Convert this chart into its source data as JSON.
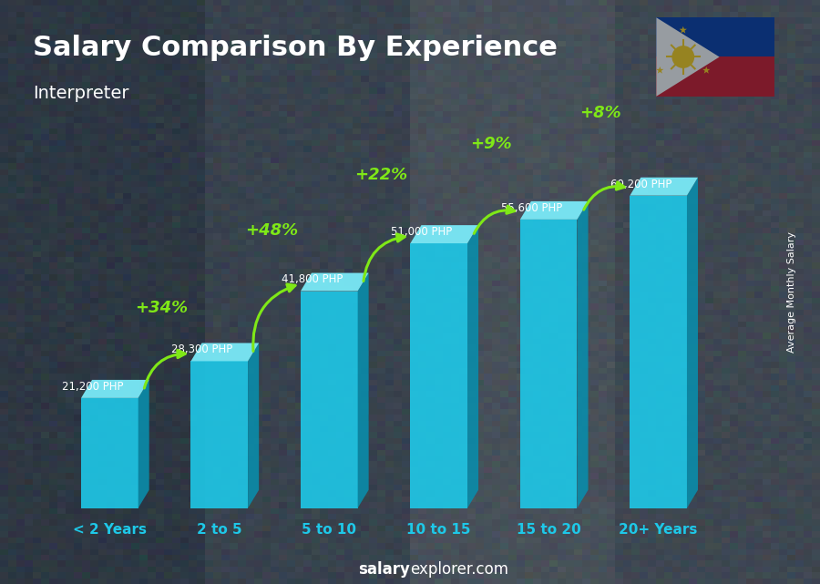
{
  "title": "Salary Comparison By Experience",
  "subtitle": "Interpreter",
  "categories": [
    "< 2 Years",
    "2 to 5",
    "5 to 10",
    "10 to 15",
    "15 to 20",
    "20+ Years"
  ],
  "values": [
    21200,
    28300,
    41800,
    51000,
    55600,
    60200
  ],
  "labels": [
    "21,200 PHP",
    "28,300 PHP",
    "41,800 PHP",
    "51,000 PHP",
    "55,600 PHP",
    "60,200 PHP"
  ],
  "pct_changes": [
    "+34%",
    "+48%",
    "+22%",
    "+9%",
    "+8%"
  ],
  "bar_face_color": "#1EC8E8",
  "bar_right_color": "#0A8CAA",
  "bar_top_color": "#7AEAF8",
  "title_color": "#FFFFFF",
  "subtitle_color": "#FFFFFF",
  "label_color": "#FFFFFF",
  "pct_color": "#7FE817",
  "xticklabel_color": "#1EC8E8",
  "watermark_bold": "salary",
  "watermark_normal": "explorer.com",
  "ylabel_rotated": "Average Monthly Salary",
  "bg_color": "#3a4a5a",
  "ylim": [
    0,
    72000
  ],
  "figsize": [
    9.0,
    6.41
  ],
  "dpi": 100
}
